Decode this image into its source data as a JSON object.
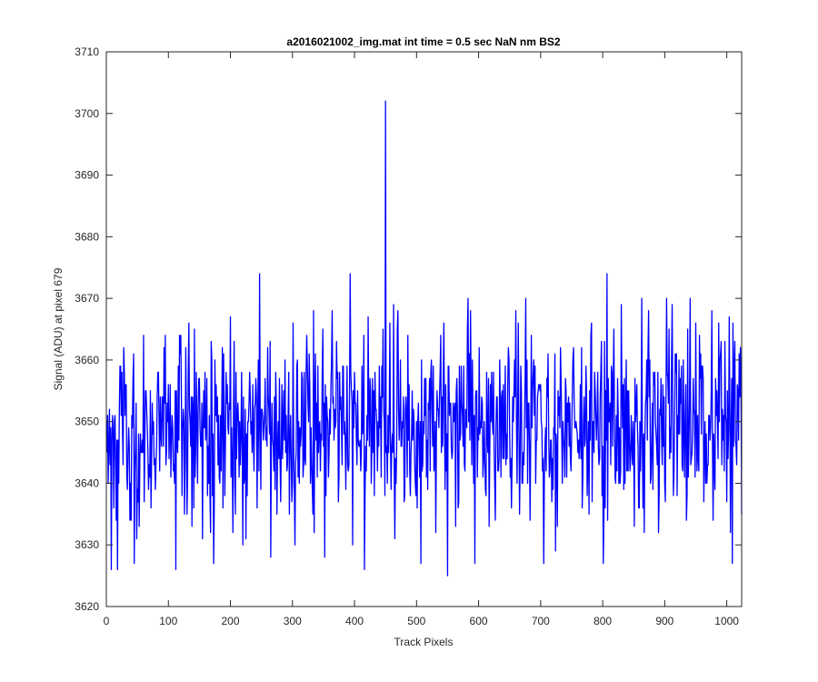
{
  "chart_data": {
    "type": "line",
    "title": "a2016021002_img.mat int time = 0.5 sec  NaN nm BS2",
    "xlabel": "Track Pixels",
    "ylabel": "Signal (ADU) at pixel 679",
    "xlim": [
      0,
      1024
    ],
    "ylim": [
      3620,
      3710
    ],
    "xticks": [
      0,
      100,
      200,
      300,
      400,
      500,
      600,
      700,
      800,
      900,
      1000
    ],
    "yticks": [
      3620,
      3630,
      3640,
      3650,
      3660,
      3670,
      3680,
      3690,
      3700,
      3710
    ],
    "grid": false,
    "legend": "none",
    "line_color": "#0000ff",
    "series": [
      {
        "x_start": 1,
        "x_step": 1,
        "noise_model": {
          "mean": 3649,
          "std": 7.5,
          "min": 3625,
          "max": 3674,
          "seed": 679
        },
        "points": [
          {
            "x": 1,
            "y": 3645
          },
          {
            "x": 8,
            "y": 3626
          },
          {
            "x": 18,
            "y": 3626
          },
          {
            "x": 28,
            "y": 3662
          },
          {
            "x": 45,
            "y": 3627
          },
          {
            "x": 60,
            "y": 3664
          },
          {
            "x": 112,
            "y": 3626
          },
          {
            "x": 173,
            "y": 3627
          },
          {
            "x": 247,
            "y": 3674
          },
          {
            "x": 265,
            "y": 3628
          },
          {
            "x": 304,
            "y": 3630
          },
          {
            "x": 364,
            "y": 3668
          },
          {
            "x": 393,
            "y": 3674
          },
          {
            "x": 397,
            "y": 3630
          },
          {
            "x": 416,
            "y": 3626
          },
          {
            "x": 450,
            "y": 3702
          },
          {
            "x": 457,
            "y": 3666
          },
          {
            "x": 465,
            "y": 3631
          },
          {
            "x": 550,
            "y": 3625
          },
          {
            "x": 583,
            "y": 3670
          },
          {
            "x": 660,
            "y": 3668
          },
          {
            "x": 676,
            "y": 3670
          },
          {
            "x": 724,
            "y": 3629
          },
          {
            "x": 807,
            "y": 3674
          },
          {
            "x": 903,
            "y": 3670
          },
          {
            "x": 935,
            "y": 3634
          },
          {
            "x": 941,
            "y": 3670
          },
          {
            "x": 1010,
            "y": 3666
          },
          {
            "x": 1024,
            "y": 3635
          }
        ]
      }
    ]
  }
}
